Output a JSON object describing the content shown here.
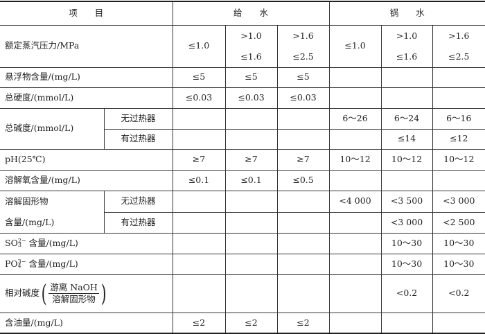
{
  "header": {
    "item": "项　　目",
    "feed": "给　　水",
    "boiler": "锅　　水"
  },
  "rows": {
    "pressure": {
      "label": "额定蒸汽压力/MPa",
      "values": [
        "≤1.0",
        ">1.0",
        ">1.6",
        "≤1.0",
        ">1.0",
        ">1.6"
      ],
      "values2": [
        "≤1.6",
        "≤2.5",
        "≤1.6",
        "≤2.5"
      ]
    },
    "suspended": {
      "label": "悬浮物含量/(mg/L)",
      "values": [
        "≤5",
        "≤5",
        "≤5",
        "",
        "",
        ""
      ]
    },
    "hardness": {
      "label": "总硬度/(mmol/L)",
      "values": [
        "≤0.03",
        "≤0.03",
        "≤0.03",
        "",
        "",
        ""
      ]
    },
    "alkalinity": {
      "label": "总碱度/(mmol/L)",
      "sub1": "无过热器",
      "sub2": "有过热器",
      "values1": [
        "",
        "",
        "",
        "6～26",
        "6～24",
        "6～16"
      ],
      "values2": [
        "",
        "",
        "",
        "",
        "≤14",
        "≤12"
      ]
    },
    "ph": {
      "label": "pH(25℃)",
      "values": [
        "≥7",
        "≥7",
        "≥7",
        "10～12",
        "10～12",
        "10～12"
      ]
    },
    "oxygen": {
      "label": "溶解氧含量/(mg/L)",
      "values": [
        "≤0.1",
        "≤0.1",
        "≤0.5",
        "",
        "",
        ""
      ]
    },
    "solids": {
      "label1": "溶解固形物",
      "label2": "含量/(mg/L)",
      "sub1": "无过热器",
      "sub2": "有过热器",
      "values1": [
        "",
        "",
        "",
        "<4 000",
        "<3 500",
        "<3 000"
      ],
      "values2": [
        "",
        "",
        "",
        "",
        "<3 000",
        "<2 500"
      ]
    },
    "sulfite": {
      "base": "SO",
      "sup": "2−",
      "sub": "3",
      "rest": " 含量/(mg/L)",
      "values": [
        "",
        "",
        "",
        "",
        "10～30",
        "10～30"
      ]
    },
    "phosphate": {
      "base": "PO",
      "sup": "3−",
      "sub": "4",
      "rest": " 含量/(mg/L)",
      "values": [
        "",
        "",
        "",
        "",
        "10～30",
        "10～30"
      ]
    },
    "relalk": {
      "label": "相对碱度",
      "num": "游离 NaOH",
      "den": "溶解固形物",
      "values": [
        "",
        "",
        "",
        "",
        "<0.2",
        "<0.2"
      ]
    },
    "oil": {
      "label": "含油量/(mg/L)",
      "values": [
        "≤2",
        "≤2",
        "≤2",
        "",
        "",
        ""
      ]
    }
  }
}
